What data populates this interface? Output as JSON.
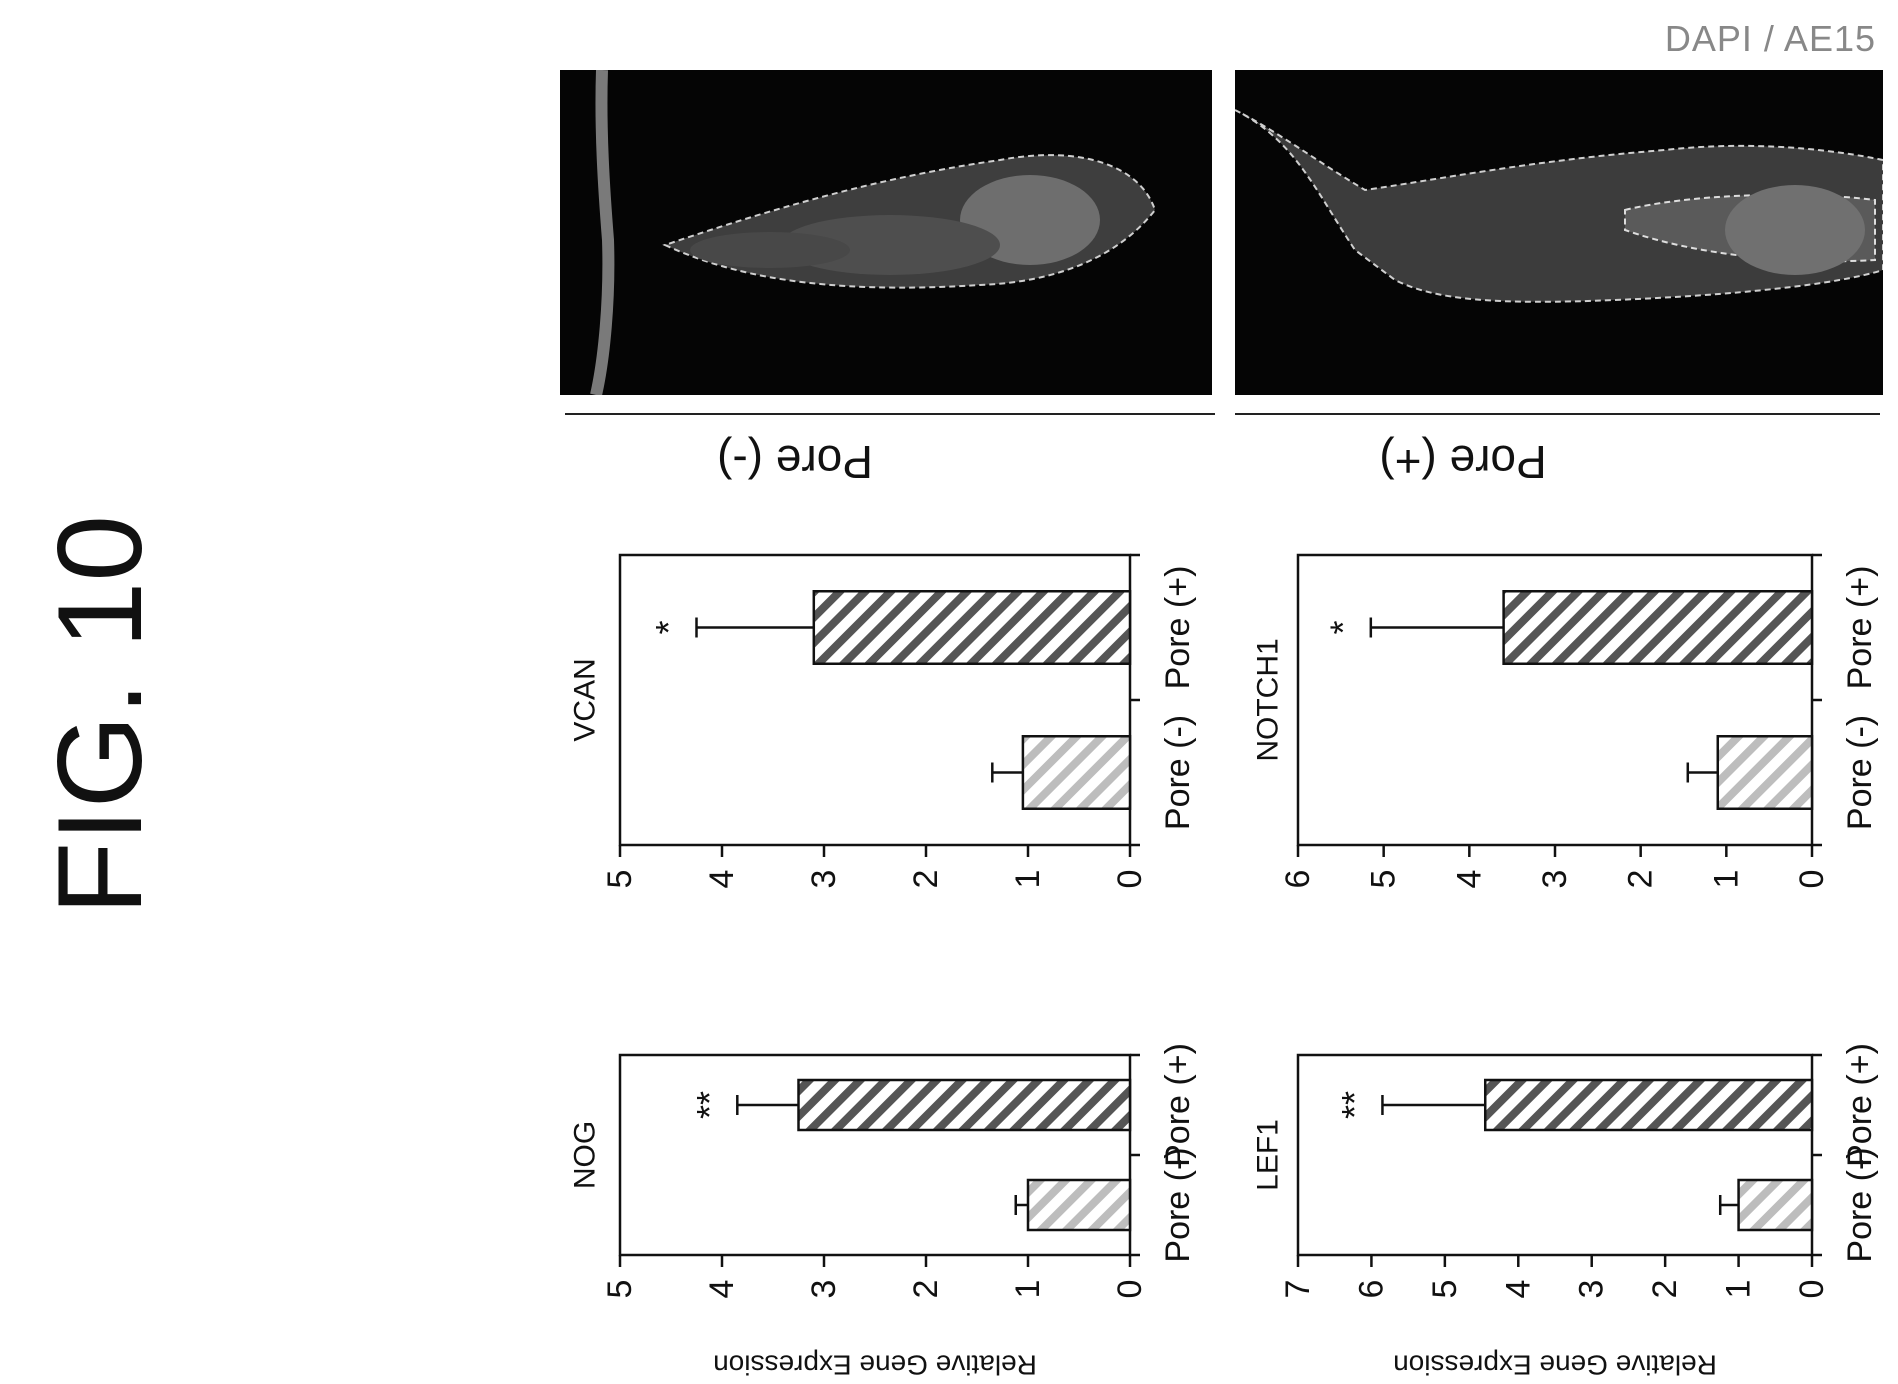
{
  "figure": {
    "title": "FIG. 10",
    "stain_label": "DAPI / AE15"
  },
  "conditions": [
    "Pore (-)",
    "Pore (+)"
  ],
  "chart_data": [
    {
      "type": "bar",
      "title": "NOG",
      "ylabel": "Relative Gene Expression",
      "categories": [
        "Pore (-)",
        "Pore (+)"
      ],
      "values": [
        1.0,
        3.25
      ],
      "errors": [
        0.12,
        0.6
      ],
      "significance": [
        "",
        "**"
      ],
      "ylim": [
        0,
        5
      ],
      "yticks": [
        "0",
        "1",
        "2",
        "3",
        "4",
        "5"
      ],
      "grid": false
    },
    {
      "type": "bar",
      "title": "VCAN",
      "ylabel": "",
      "categories": [
        "Pore (-)",
        "Pore (+)"
      ],
      "values": [
        1.05,
        3.1
      ],
      "errors": [
        0.3,
        1.15
      ],
      "significance": [
        "",
        "*"
      ],
      "ylim": [
        0,
        5
      ],
      "yticks": [
        "0",
        "1",
        "2",
        "3",
        "4",
        "5"
      ],
      "grid": false
    },
    {
      "type": "bar",
      "title": "LEF1",
      "ylabel": "Relative Gene Expression",
      "categories": [
        "Pore (-)",
        "Pore (+)"
      ],
      "values": [
        1.0,
        4.45
      ],
      "errors": [
        0.25,
        1.4
      ],
      "significance": [
        "",
        "**"
      ],
      "ylim": [
        0,
        7
      ],
      "yticks": [
        "0",
        "1",
        "2",
        "3",
        "4",
        "5",
        "6",
        "7"
      ],
      "grid": false
    },
    {
      "type": "bar",
      "title": "NOTCH1",
      "ylabel": "",
      "categories": [
        "Pore (-)",
        "Pore (+)"
      ],
      "values": [
        1.1,
        3.6
      ],
      "errors": [
        0.35,
        1.55
      ],
      "significance": [
        "",
        "*"
      ],
      "ylim": [
        0,
        6
      ],
      "yticks": [
        "0",
        "1",
        "2",
        "3",
        "4",
        "5",
        "6"
      ],
      "grid": false
    }
  ],
  "colors": {
    "axis": "#111111",
    "bar_light": "#bdbdbd",
    "bar_dark": "#555555",
    "stain_label": "#888888",
    "micro_bg": "#050505",
    "micro_signal": "#6e6e6e"
  }
}
